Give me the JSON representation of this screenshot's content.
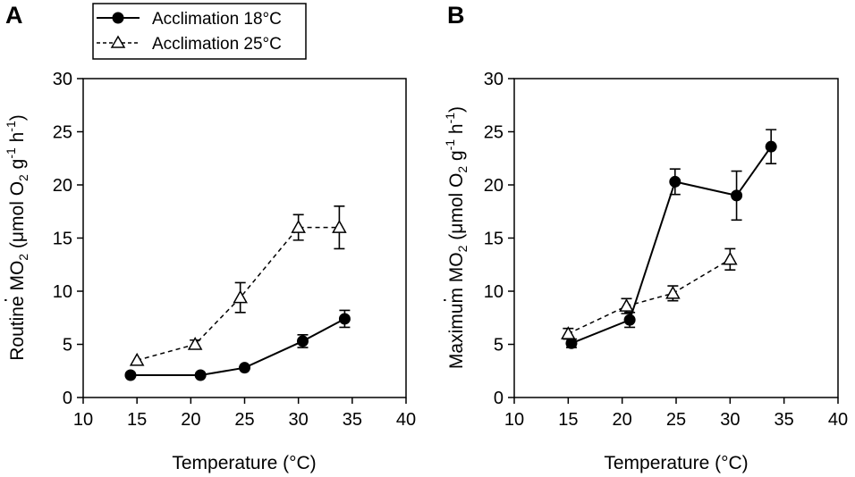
{
  "figure": {
    "legend": {
      "entries": [
        {
          "label": "Acclimation 18°C",
          "marker": "filled-circle",
          "line": "solid"
        },
        {
          "label": "Acclimation 25°C",
          "marker": "open-triangle",
          "line": "dashed"
        }
      ]
    }
  },
  "chart_data": [
    {
      "panel": "A",
      "type": "line",
      "title": "",
      "xlabel": "Temperature (°C)",
      "ylabel": {
        "prefix": "Routine ",
        "mo": "MO",
        "o2_sub": "2",
        "unit_open": " (μmol O",
        "unit_o2_sub": "2",
        "g": " g",
        "g_sup": "-1",
        "h": " h",
        "h_sup": "-1",
        "close": ")"
      },
      "xlim": [
        10,
        40
      ],
      "ylim": [
        0,
        30
      ],
      "xticks": [
        "10",
        "15",
        "20",
        "25",
        "30",
        "35",
        "40"
      ],
      "yticks": [
        "0",
        "5",
        "10",
        "15",
        "20",
        "25",
        "30"
      ],
      "grid": false,
      "series": [
        {
          "name": "Acclimation 18°C",
          "marker": "filled-circle",
          "line": "solid",
          "x": [
            14.4,
            20.9,
            25.0,
            30.4,
            34.3
          ],
          "y": [
            2.1,
            2.1,
            2.8,
            5.3,
            7.4
          ],
          "err": [
            0,
            0,
            0,
            0.6,
            0.8
          ]
        },
        {
          "name": "Acclimation 25°C",
          "marker": "open-triangle",
          "line": "dashed",
          "x": [
            15.0,
            20.4,
            24.6,
            30.0,
            33.8
          ],
          "y": [
            3.5,
            5.0,
            9.4,
            16.0,
            16.0
          ],
          "err": [
            0,
            0.4,
            1.4,
            1.2,
            2.0
          ]
        }
      ]
    },
    {
      "panel": "B",
      "type": "line",
      "title": "",
      "xlabel": "Temperature (°C)",
      "ylabel": {
        "prefix": "Maximum ",
        "mo": "MO",
        "o2_sub": "2",
        "unit_open": " (μmol O",
        "unit_o2_sub": "2",
        "g": " g",
        "g_sup": "-1",
        "h": " h",
        "h_sup": "-1",
        "close": ")"
      },
      "xlim": [
        10,
        40
      ],
      "ylim": [
        0,
        30
      ],
      "xticks": [
        "10",
        "15",
        "20",
        "25",
        "30",
        "35",
        "40"
      ],
      "yticks": [
        "0",
        "5",
        "10",
        "15",
        "20",
        "25",
        "30"
      ],
      "grid": false,
      "series": [
        {
          "name": "Acclimation 18°C",
          "marker": "filled-circle",
          "line": "solid",
          "x": [
            15.3,
            20.7,
            24.9,
            30.6,
            33.8
          ],
          "y": [
            5.1,
            7.3,
            20.3,
            19.0,
            23.6
          ],
          "err": [
            0.4,
            0.7,
            1.2,
            2.3,
            1.6
          ]
        },
        {
          "name": "Acclimation 25°C",
          "marker": "open-triangle",
          "line": "dashed",
          "x": [
            15.0,
            20.4,
            24.7,
            30.0
          ],
          "y": [
            6.0,
            8.6,
            9.8,
            13.0
          ],
          "err": [
            0.5,
            0.7,
            0.7,
            1.0
          ]
        }
      ]
    }
  ]
}
